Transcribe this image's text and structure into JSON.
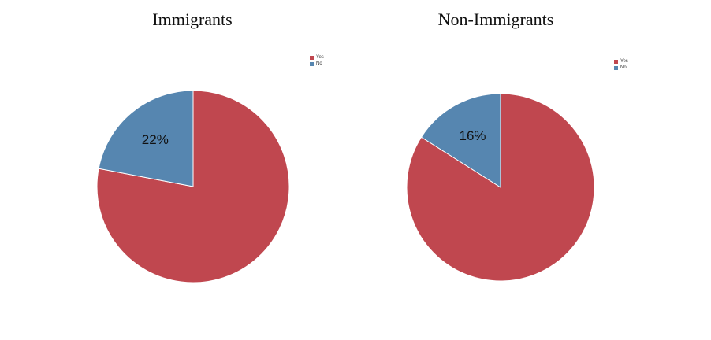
{
  "chart_data": [
    {
      "type": "pie",
      "title": "Immigrants",
      "slices": [
        {
          "label": "Yes",
          "value": 78,
          "color": "#c0474f",
          "display": ""
        },
        {
          "label": "No",
          "value": 22,
          "color": "#5686b0",
          "display": "22%"
        }
      ],
      "legend": {
        "position": "top-right",
        "entries": [
          "Yes",
          "No"
        ]
      }
    },
    {
      "type": "pie",
      "title": "Non-Immigrants",
      "slices": [
        {
          "label": "Yes",
          "value": 84,
          "color": "#c0474f",
          "display": ""
        },
        {
          "label": "No",
          "value": 16,
          "color": "#5686b0",
          "display": "16%"
        }
      ],
      "legend": {
        "position": "top-right",
        "entries": [
          "Yes",
          "No"
        ]
      }
    }
  ]
}
